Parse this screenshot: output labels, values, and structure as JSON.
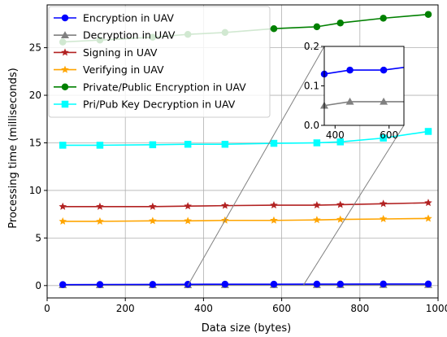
{
  "chart_data": {
    "type": "line",
    "xlabel": "Data size (bytes)",
    "ylabel": "Processing time (milliseconds)",
    "xlim": [
      0,
      1000
    ],
    "ylim": [
      -1.3,
      29.5
    ],
    "xticks": [
      0,
      200,
      400,
      600,
      800,
      1000
    ],
    "yticks": [
      0,
      5,
      10,
      15,
      20,
      25
    ],
    "grid": true,
    "legend_position": "upper-left",
    "x": [
      40,
      135,
      270,
      360,
      455,
      580,
      690,
      750,
      860,
      975
    ],
    "series": [
      {
        "name": "Encryption in UAV",
        "color": "#0000ff",
        "marker": "circle",
        "values": [
          0.1,
          0.11,
          0.12,
          0.13,
          0.14,
          0.14,
          0.15,
          0.15,
          0.16,
          0.16
        ]
      },
      {
        "name": "Decryption in UAV",
        "color": "#808080",
        "marker": "triangle",
        "values": [
          0.05,
          0.05,
          0.05,
          0.05,
          0.06,
          0.06,
          0.06,
          0.06,
          0.07,
          0.07
        ]
      },
      {
        "name": "Signing in UAV",
        "color": "#b22222",
        "marker": "star",
        "values": [
          8.3,
          8.3,
          8.3,
          8.35,
          8.4,
          8.45,
          8.45,
          8.5,
          8.6,
          8.7
        ]
      },
      {
        "name": "Verifying in UAV",
        "color": "#ffa500",
        "marker": "star",
        "values": [
          6.75,
          6.75,
          6.8,
          6.8,
          6.85,
          6.85,
          6.9,
          6.95,
          7.0,
          7.05
        ]
      },
      {
        "name": "Private/Public Encryption in UAV",
        "color": "#008000",
        "marker": "circle",
        "values": [
          25.6,
          25.8,
          26.1,
          26.4,
          26.6,
          27.0,
          27.2,
          27.6,
          28.1,
          28.5
        ]
      },
      {
        "name": "Pri/Pub Key Decryption in UAV",
        "color": "#00ffff",
        "marker": "square",
        "values": [
          14.75,
          14.75,
          14.8,
          14.85,
          14.85,
          14.95,
          15.0,
          15.1,
          15.5,
          16.2
        ]
      }
    ],
    "inset": {
      "xlim": [
        360,
        655
      ],
      "ylim": [
        0,
        0.2
      ],
      "xticks": [
        400,
        600
      ],
      "yticks": [
        0.0,
        0.1,
        0.2
      ],
      "grid": false,
      "series_shown": [
        "Encryption in UAV",
        "Decryption in UAV"
      ]
    }
  }
}
